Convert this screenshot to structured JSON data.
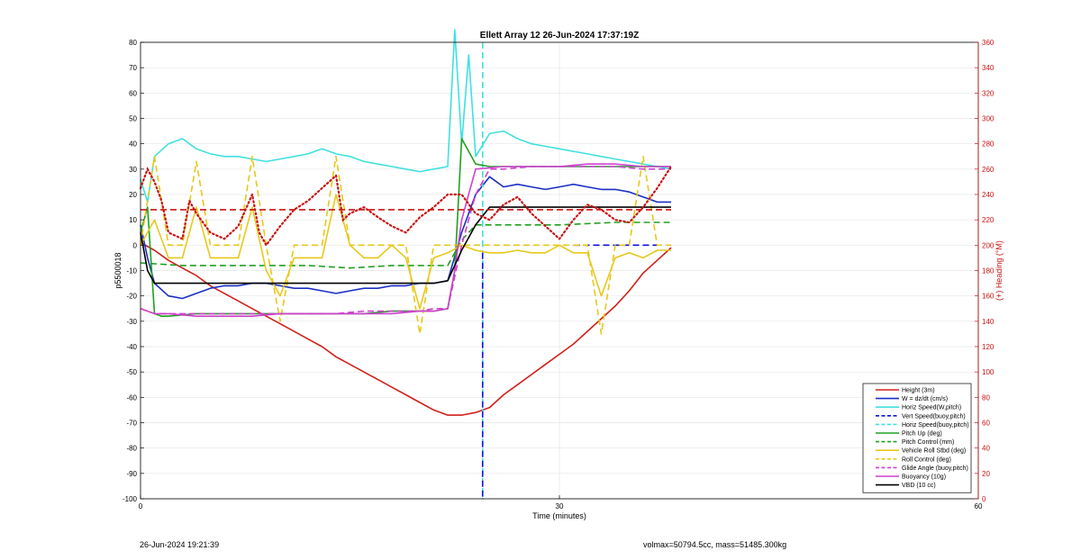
{
  "footer": {
    "left": "26-Jun-2024 19:21:39",
    "right": "volmax=50794.5cc, mass=51485.300kg"
  },
  "colors": {
    "height": "#d0201a",
    "w": "#1a2fc4",
    "horiz": "#40e0e0",
    "vert_buoy": "#1010e0",
    "pitch": "#20a020",
    "roll": "#e8c81a",
    "glide": "#d040d0",
    "buoyancy": "#d040d0",
    "vbd": "#000000",
    "heading": "#c81414"
  },
  "chart_data": {
    "type": "line",
    "title": "Ellett Array 12 26-Jun-2024 17:37:19Z",
    "xlabel": "Time (minutes)",
    "ylabel": "p5500018",
    "y2label": "(+) Heading (°M)",
    "xlim": [
      0,
      60
    ],
    "ylim": [
      -100,
      80
    ],
    "y2lim": [
      0,
      360
    ],
    "xticks": [
      0,
      30,
      60
    ],
    "yticks": [
      80,
      70,
      60,
      50,
      40,
      30,
      20,
      10,
      0,
      -10,
      -20,
      -30,
      -40,
      -50,
      -60,
      -70,
      -80,
      -90,
      -100
    ],
    "y2ticks": [
      360,
      340,
      320,
      300,
      280,
      260,
      240,
      220,
      200,
      180,
      160,
      140,
      120,
      100,
      80,
      60,
      40,
      20,
      0
    ],
    "grid": true,
    "legend_position": "bottom-right",
    "series": [
      {
        "name": "Height (3m)",
        "style": "solid",
        "color": "#d0201a",
        "x": [
          0,
          1,
          2,
          3,
          4,
          5,
          6,
          7,
          8,
          9,
          10,
          11,
          12,
          13,
          14,
          15,
          16,
          17,
          18,
          19,
          20,
          21,
          22,
          23,
          24,
          25,
          26,
          27,
          28,
          29,
          30,
          31,
          32,
          33,
          34,
          35,
          36,
          37,
          38
        ],
        "y": [
          1,
          -2,
          -6,
          -9,
          -12,
          -16,
          -19,
          -22,
          -25,
          -28,
          -31,
          -34,
          -37,
          -40,
          -44,
          -47,
          -50,
          -53,
          -56,
          -59,
          -62,
          -65,
          -67,
          -67,
          -66,
          -64,
          -59,
          -55,
          -51,
          -47,
          -43,
          -39,
          -34,
          -29,
          -24,
          -18,
          -11,
          -6,
          -1
        ]
      },
      {
        "name": "W = dz/dt (cm/s)",
        "style": "solid",
        "color": "#1a2fc4",
        "x": [
          0,
          0.5,
          1,
          2,
          3,
          4,
          5,
          6,
          7,
          8,
          9,
          10,
          11,
          12,
          13,
          14,
          15,
          16,
          17,
          18,
          19,
          20,
          21,
          22,
          23,
          24,
          25,
          26,
          27,
          28,
          29,
          30,
          31,
          32,
          33,
          34,
          35,
          36,
          37,
          38
        ],
        "y": [
          8,
          -5,
          -15,
          -20,
          -21,
          -19,
          -17,
          -16,
          -16,
          -15,
          -15,
          -16,
          -17,
          -17,
          -18,
          -19,
          -18,
          -17,
          -17,
          -16,
          -16,
          -15,
          -15,
          -14,
          5,
          20,
          27,
          23,
          24,
          23,
          22,
          23,
          24,
          23,
          22,
          22,
          21,
          19,
          17,
          17
        ]
      },
      {
        "name": "Horiz Speed(W,pitch)",
        "style": "solid",
        "color": "#40e0e0",
        "x": [
          0,
          0.5,
          1,
          2,
          3,
          4,
          5,
          6,
          7,
          8,
          9,
          10,
          11,
          12,
          13,
          14,
          15,
          16,
          17,
          18,
          19,
          20,
          21,
          22,
          22.5,
          23,
          23.5,
          24,
          25,
          26,
          27,
          28,
          29,
          30,
          31,
          32,
          33,
          34,
          35,
          36,
          37,
          38
        ],
        "y": [
          26,
          17,
          35,
          40,
          42,
          38,
          36,
          35,
          35,
          34,
          33,
          34,
          35,
          36,
          38,
          36,
          35,
          33,
          32,
          31,
          30,
          29,
          30,
          31,
          85,
          40,
          75,
          35,
          44,
          45,
          42,
          40,
          39,
          38,
          37,
          36,
          35,
          34,
          33,
          32,
          31,
          30
        ]
      },
      {
        "name": "Vert Speed(buoy,pitch)",
        "style": "dashed",
        "color": "#1010e0",
        "x": [
          31,
          37
        ],
        "y": [
          0,
          0
        ]
      },
      {
        "name": "Horiz Speed(buoy,pitch)",
        "style": "dashed",
        "color": "#40e0e0",
        "x": [
          24.5,
          24.5
        ],
        "y": [
          80,
          -100
        ]
      },
      {
        "name": "Pitch Up (deg)",
        "style": "solid",
        "color": "#20a020",
        "x": [
          0,
          0.5,
          1,
          1.5,
          2,
          4,
          6,
          8,
          10,
          12,
          14,
          16,
          18,
          20,
          21,
          22,
          22.5,
          23,
          23.5,
          24,
          25,
          26,
          28,
          30,
          32,
          34,
          36,
          38
        ],
        "y": [
          5,
          15,
          -27,
          -28,
          -28,
          -27,
          -27,
          -27,
          -27,
          -27,
          -27,
          -27,
          -26,
          -26,
          -26,
          -25,
          -10,
          42,
          37,
          32,
          31,
          31,
          31,
          31,
          31,
          31,
          31,
          31
        ]
      },
      {
        "name": "Pitch Control (mm)",
        "style": "dashed",
        "color": "#20a020",
        "x": [
          0,
          3,
          6,
          9,
          12,
          15,
          18,
          21,
          22,
          23,
          24,
          26,
          30,
          34,
          38
        ],
        "y": [
          -7,
          -8,
          -8,
          -8,
          -8,
          -9,
          -8,
          -8,
          -8,
          2,
          8,
          8,
          8,
          9,
          9
        ]
      },
      {
        "name": "Vehicle Roll Stbd (deg)",
        "style": "solid",
        "color": "#e8c81a",
        "x": [
          0,
          1,
          2,
          3,
          4,
          5,
          6,
          7,
          8,
          9,
          10,
          11,
          12,
          13,
          14,
          15,
          16,
          17,
          18,
          19,
          20,
          21,
          22,
          23,
          24,
          25,
          26,
          27,
          28,
          29,
          30,
          31,
          32,
          33,
          34,
          35,
          36,
          37,
          38
        ],
        "y": [
          0,
          10,
          -5,
          -5,
          15,
          -5,
          -5,
          -5,
          15,
          -10,
          -20,
          -5,
          -5,
          -5,
          20,
          0,
          -5,
          -5,
          0,
          -5,
          -25,
          -5,
          -3,
          0,
          -2,
          -3,
          -3,
          -2,
          -3,
          -3,
          0,
          -3,
          -3,
          -20,
          -5,
          -3,
          -5,
          -2,
          -2
        ]
      },
      {
        "name": "Roll Control (deg)",
        "style": "dashed",
        "color": "#e8c81a",
        "x": [
          0,
          1,
          2,
          3,
          4,
          5,
          6,
          7,
          8,
          9,
          10,
          11,
          12,
          13,
          14,
          15,
          16,
          17,
          18,
          19,
          20,
          21,
          22,
          23,
          24,
          25,
          26,
          27,
          28,
          29,
          30,
          31,
          32,
          33,
          34,
          35,
          36,
          37,
          38
        ],
        "y": [
          0,
          35,
          0,
          0,
          33,
          0,
          0,
          0,
          35,
          0,
          -30,
          0,
          0,
          0,
          35,
          0,
          0,
          0,
          0,
          0,
          -35,
          0,
          0,
          0,
          0,
          0,
          0,
          0,
          0,
          0,
          0,
          0,
          0,
          -35,
          0,
          0,
          35,
          0,
          0
        ]
      },
      {
        "name": "Glide Angle (buoy,pitch)",
        "style": "dashed",
        "color": "#d040d0",
        "x": [
          0,
          1,
          2,
          4,
          6,
          8,
          10,
          12,
          14,
          16,
          18,
          20,
          21,
          22,
          23,
          24,
          25,
          26,
          28,
          30,
          32,
          34,
          36,
          38
        ],
        "y": [
          -25,
          -27,
          -27,
          -27,
          -27,
          -27,
          -27,
          -27,
          -27,
          -26,
          -26,
          -26,
          -25,
          -25,
          0,
          20,
          30,
          30,
          31,
          31,
          31,
          31,
          30,
          30
        ]
      },
      {
        "name": "Buoyancy (10g)",
        "style": "solid",
        "color": "#d040d0",
        "x": [
          0,
          1,
          2,
          4,
          6,
          8,
          10,
          12,
          14,
          16,
          18,
          20,
          21,
          22,
          22.5,
          23,
          24,
          26,
          28,
          30,
          32,
          34,
          36,
          38
        ],
        "y": [
          -25,
          -27,
          -27,
          -28,
          -28,
          -28,
          -27,
          -27,
          -27,
          -27,
          -27,
          -26,
          -26,
          -25,
          -10,
          10,
          30,
          31,
          31,
          31,
          32,
          32,
          31,
          31
        ]
      },
      {
        "name": "VBD (10 cc)",
        "style": "solid",
        "color": "#000000",
        "x": [
          0,
          0.5,
          1,
          10,
          20,
          21,
          22,
          23,
          24,
          25,
          30,
          38
        ],
        "y": [
          5,
          -10,
          -15,
          -15,
          -15,
          -15,
          -14,
          -2,
          8,
          15,
          15,
          15
        ]
      }
    ],
    "heading": {
      "name": "(+) Heading (°M)",
      "style": "dotted",
      "color": "#c81414",
      "x": [
        0,
        0.5,
        1,
        1.5,
        2,
        3,
        3.5,
        4,
        5,
        6,
        7,
        8,
        8.5,
        9,
        10,
        11,
        12,
        13,
        14,
        14.5,
        15,
        16,
        17,
        18,
        19,
        20,
        21,
        22,
        23,
        24,
        25,
        26,
        27,
        28,
        29,
        30,
        31,
        32,
        33,
        34,
        35,
        36,
        37,
        38
      ],
      "y": [
        245,
        260,
        250,
        235,
        210,
        205,
        235,
        225,
        210,
        205,
        215,
        240,
        210,
        200,
        215,
        228,
        235,
        245,
        255,
        220,
        225,
        230,
        222,
        215,
        210,
        222,
        230,
        240,
        240,
        225,
        220,
        232,
        238,
        225,
        215,
        205,
        220,
        232,
        228,
        220,
        218,
        230,
        245,
        262
      ],
      "level_dashed": 228
    }
  }
}
